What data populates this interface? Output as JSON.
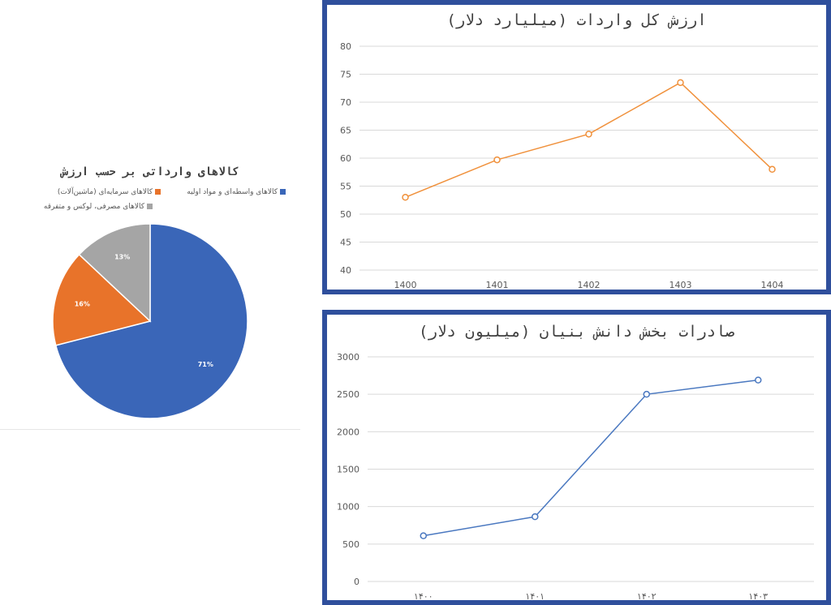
{
  "chart_data": [
    {
      "type": "pie",
      "title": "کالاهای وارداتی بر حسب ارزش",
      "slices": [
        {
          "label": "کالاهای واسطه‌ای و مواد اولیه",
          "value": 71,
          "display": "71%",
          "color": "#3a66b8"
        },
        {
          "label": "کالاهای سرمایه‌ای (ماشین‌آلات)",
          "value": 16,
          "display": "16%",
          "color": "#e8732a"
        },
        {
          "label": "کالاهای مصرفی، لوکس و متفرقه",
          "value": 13,
          "display": "13%",
          "color": "#a5a5a5"
        }
      ],
      "legend": "top"
    },
    {
      "type": "line",
      "title": "ارزش کل واردات (میلیارد دلار)",
      "categories": [
        "1400",
        "1401",
        "1402",
        "1403",
        "1404"
      ],
      "values": [
        53,
        59.7,
        64.3,
        73.5,
        58
      ],
      "ylim": [
        40,
        80
      ],
      "yticks": [
        40,
        45,
        50,
        55,
        60,
        65,
        70,
        75,
        80
      ],
      "color": "#f0913c",
      "grid": true
    },
    {
      "type": "line",
      "title": "صادرات بخش دانش بنیان (میلیون دلار)",
      "categories": [
        "۱۴۰۰",
        "۱۴۰۱",
        "۱۴۰۲",
        "۱۴۰۳"
      ],
      "values": [
        610,
        865,
        2500,
        2690
      ],
      "ylim": [
        0,
        3000
      ],
      "yticks": [
        0,
        500,
        1000,
        1500,
        2000,
        2500,
        3000
      ],
      "color": "#4a78c0",
      "grid": true
    }
  ]
}
